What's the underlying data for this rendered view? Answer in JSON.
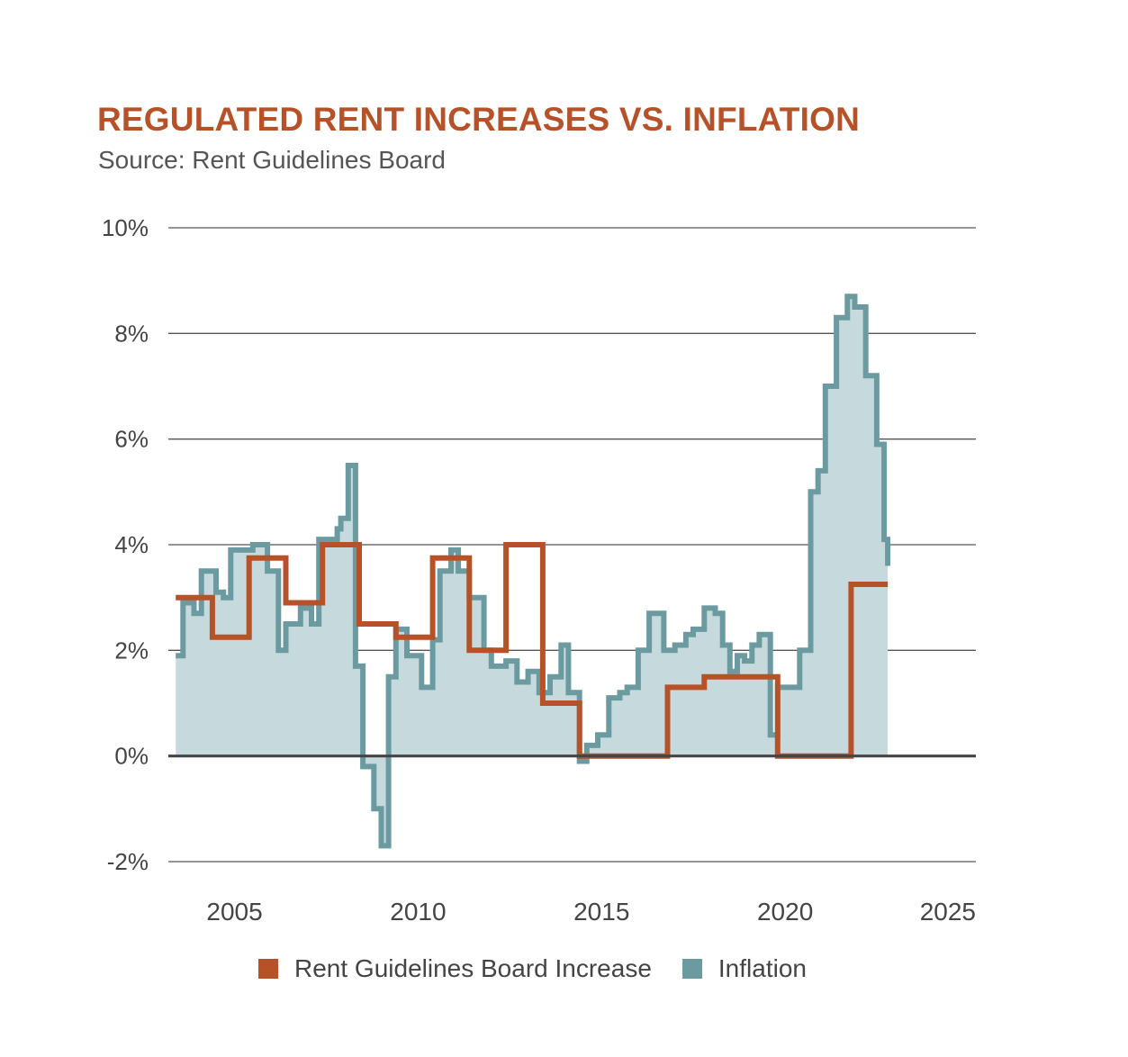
{
  "colors": {
    "rent": "#b65128",
    "inflation_line": "#6b9ba1",
    "inflation_fill": "#c6dadd",
    "grid": "#555555",
    "title": "#b65128"
  },
  "chart_data": {
    "type": "line",
    "title": "REGULATED RENT INCREASES VS. INFLATION",
    "subtitle": "Source: Rent Guidelines Board",
    "ylim": [
      -2,
      10
    ],
    "xlim": [
      2003,
      2025
    ],
    "yticks": [
      10,
      8,
      6,
      4,
      2,
      0,
      -2
    ],
    "ytick_labels": [
      "10%",
      "8%",
      "6%",
      "4%",
      "2%",
      "0%",
      "-2%"
    ],
    "xticks": [
      2005,
      2010,
      2015,
      2020,
      2025
    ],
    "xtick_labels": [
      "2005",
      "2010",
      "2015",
      "2020",
      "2025"
    ],
    "grid": true,
    "legend_position": "bottom",
    "series": [
      {
        "name": "Rent Guidelines Board Increase",
        "style": "step",
        "color": "#b65128",
        "x": [
          2003.2,
          2004.2,
          2005.2,
          2006.2,
          2007.2,
          2008.2,
          2009.2,
          2010.2,
          2011.2,
          2012.2,
          2013.2,
          2014.2,
          2015.2,
          2016.6,
          2017.6,
          2018.6,
          2019.6,
          2021.6,
          2022.6
        ],
        "values": [
          3.0,
          2.25,
          3.75,
          2.9,
          4.0,
          2.5,
          2.25,
          3.75,
          2.0,
          4.0,
          1.0,
          0.0,
          0.0,
          1.3,
          1.5,
          1.5,
          0.0,
          3.25,
          3.25
        ]
      },
      {
        "name": "Inflation",
        "style": "step-area",
        "color": "#6b9ba1",
        "fill": "#c6dadd",
        "x": [
          2003.2,
          2003.4,
          2003.7,
          2003.9,
          2004.3,
          2004.5,
          2004.7,
          2004.9,
          2005.3,
          2005.7,
          2006.0,
          2006.2,
          2006.6,
          2006.9,
          2007.1,
          2007.6,
          2007.7,
          2007.9,
          2008.1,
          2008.3,
          2008.6,
          2008.8,
          2009.0,
          2009.2,
          2009.5,
          2009.9,
          2010.2,
          2010.4,
          2010.7,
          2010.9,
          2011.2,
          2011.6,
          2011.8,
          2012.2,
          2012.5,
          2012.8,
          2013.1,
          2013.4,
          2013.7,
          2013.9,
          2014.2,
          2014.4,
          2014.7,
          2015.0,
          2015.3,
          2015.5,
          2015.8,
          2016.1,
          2016.5,
          2016.8,
          2017.1,
          2017.3,
          2017.6,
          2017.9,
          2018.1,
          2018.3,
          2018.5,
          2018.7,
          2018.9,
          2019.1,
          2019.4,
          2019.6,
          2019.8,
          2020.2,
          2020.5,
          2020.7,
          2020.9,
          2021.2,
          2021.5,
          2021.7,
          2022.0,
          2022.3,
          2022.5,
          2022.6
        ],
        "values": [
          1.9,
          2.9,
          2.7,
          3.5,
          3.1,
          3.0,
          3.9,
          3.9,
          4.0,
          3.5,
          2.0,
          2.5,
          2.8,
          2.5,
          4.1,
          4.3,
          4.5,
          5.5,
          1.7,
          -0.2,
          -1.0,
          -1.7,
          1.5,
          2.4,
          1.9,
          1.3,
          2.2,
          3.5,
          3.9,
          3.5,
          3.0,
          2.0,
          1.7,
          1.8,
          1.4,
          1.6,
          1.2,
          1.5,
          2.1,
          1.2,
          -0.1,
          0.2,
          0.4,
          1.1,
          1.2,
          1.3,
          2.0,
          2.7,
          2.0,
          2.1,
          2.3,
          2.4,
          2.8,
          2.7,
          2.1,
          1.6,
          1.9,
          1.8,
          2.1,
          2.3,
          0.4,
          1.3,
          1.3,
          2.0,
          5.0,
          5.4,
          7.0,
          8.3,
          8.7,
          8.5,
          7.2,
          5.9,
          4.1,
          3.6
        ]
      }
    ]
  }
}
